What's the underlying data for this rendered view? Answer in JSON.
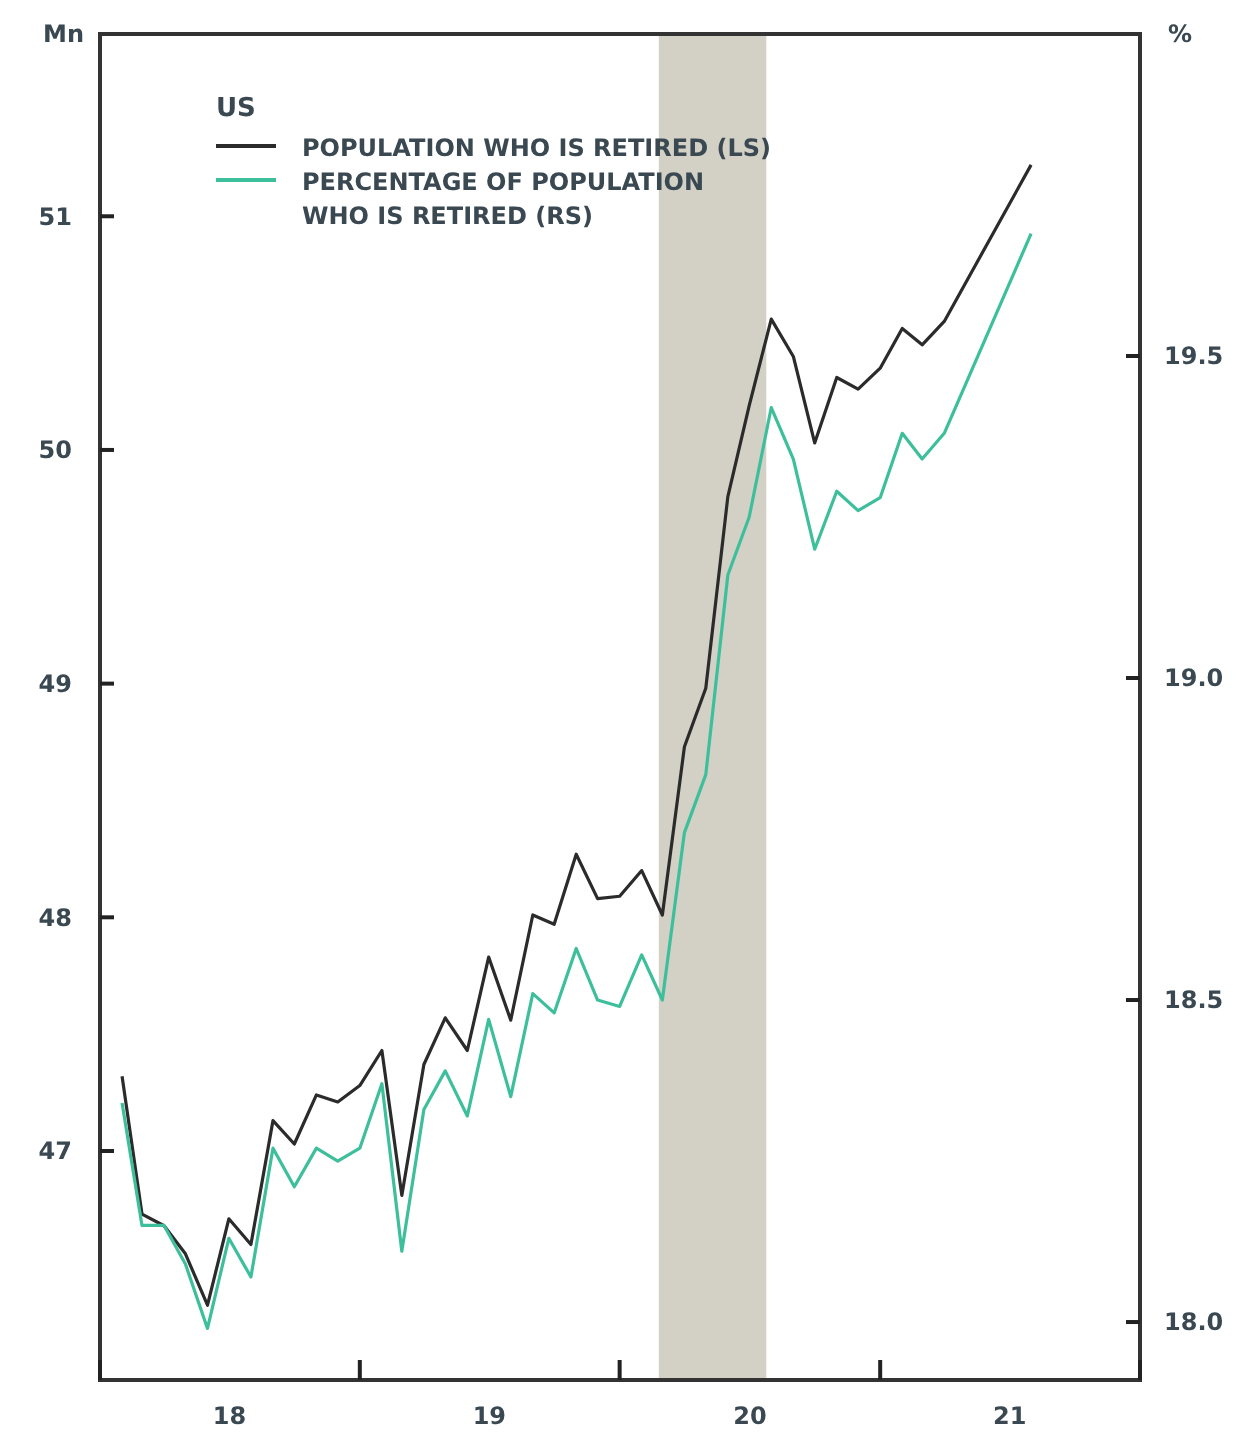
{
  "chart_data": {
    "type": "line",
    "ylabel": "Mn",
    "y2label": "%",
    "legend_title": "US",
    "legend": "top left",
    "grid": false,
    "marker": "none",
    "line_style": "solid",
    "xlim": [
      "2018-01-01",
      "2022-01-01"
    ],
    "xticks": [
      {
        "value": "2018-01-01",
        "label": null
      },
      {
        "value": "2018-07-02",
        "label": "18"
      },
      {
        "value": "2019-01-01",
        "label": null
      },
      {
        "value": "2019-07-02",
        "label": "19"
      },
      {
        "value": "2020-01-01",
        "label": null
      },
      {
        "value": "2020-07-02",
        "label": "20"
      },
      {
        "value": "2021-01-01",
        "label": null
      },
      {
        "value": "2021-07-02",
        "label": "21"
      },
      {
        "value": "2022-01-01",
        "label": null
      }
    ],
    "ylim": [
      46.02,
      51.78
    ],
    "yticks": [
      47,
      48,
      49,
      50,
      51
    ],
    "y2lim": [
      17.91,
      20.0
    ],
    "y2ticks": [
      {
        "value": 18,
        "label": "18.0"
      },
      18.5,
      {
        "value": 19,
        "label": "19.0"
      },
      19.5
    ],
    "bands": [
      {
        "axis": "x",
        "from": "2020-02-25",
        "to": "2020-07-25",
        "color": "#d3d1c6"
      }
    ],
    "series": [
      {
        "name": "POPULATION WHO IS RETIRED (LS)",
        "color": "#2b2b2b",
        "x": [
          "2018-02",
          "2018-03",
          "2018-04",
          "2018-05",
          "2018-06",
          "2018-07",
          "2018-08",
          "2018-09",
          "2018-10",
          "2018-11",
          "2018-12",
          "2019-01",
          "2019-02",
          "2019-03",
          "2019-04",
          "2019-05",
          "2019-06",
          "2019-07",
          "2019-08",
          "2019-09",
          "2019-10",
          "2019-11",
          "2019-12",
          "2020-01",
          "2020-02",
          "2020-03",
          "2020-04",
          "2020-05",
          "2020-06",
          "2020-07",
          "2020-08",
          "2020-09",
          "2020-10",
          "2020-11",
          "2020-12",
          "2021-01",
          "2021-02",
          "2021-03",
          "2021-04",
          "2021-08"
        ],
        "values": [
          47.32,
          46.73,
          46.68,
          46.56,
          46.34,
          46.71,
          46.6,
          47.13,
          47.03,
          47.24,
          47.21,
          47.28,
          47.43,
          46.81,
          47.37,
          47.57,
          47.43,
          47.83,
          47.56,
          48.01,
          47.97,
          48.27,
          48.08,
          48.09,
          48.2,
          48.01,
          48.73,
          48.98,
          49.8,
          50.19,
          50.56,
          50.4,
          50.03,
          50.31,
          50.26,
          50.35,
          50.52,
          50.45,
          50.55,
          51.22
        ]
      },
      {
        "name": "PERCENTAGE OF POPULATION WHO IS RETIRED (RS)",
        "color": "#3dbf9c",
        "axis": "y2",
        "x": [
          "2018-02",
          "2018-03",
          "2018-04",
          "2018-05",
          "2018-06",
          "2018-07",
          "2018-08",
          "2018-09",
          "2018-10",
          "2018-11",
          "2018-12",
          "2019-01",
          "2019-02",
          "2019-03",
          "2019-04",
          "2019-05",
          "2019-06",
          "2019-07",
          "2019-08",
          "2019-09",
          "2019-10",
          "2019-11",
          "2019-12",
          "2020-01",
          "2020-02",
          "2020-03",
          "2020-04",
          "2020-05",
          "2020-06",
          "2020-07",
          "2020-08",
          "2020-09",
          "2020-10",
          "2020-11",
          "2020-12",
          "2021-01",
          "2021-02",
          "2021-03",
          "2021-04",
          "2021-08"
        ],
        "values": [
          18.34,
          18.15,
          18.15,
          18.09,
          17.99,
          18.13,
          18.07,
          18.27,
          18.21,
          18.27,
          18.25,
          18.27,
          18.37,
          18.11,
          18.33,
          18.39,
          18.32,
          18.47,
          18.35,
          18.51,
          18.48,
          18.58,
          18.5,
          18.49,
          18.57,
          18.5,
          18.76,
          18.85,
          19.16,
          19.25,
          19.42,
          19.34,
          19.2,
          19.29,
          19.26,
          19.28,
          19.38,
          19.34,
          19.38,
          19.69
        ]
      }
    ]
  }
}
